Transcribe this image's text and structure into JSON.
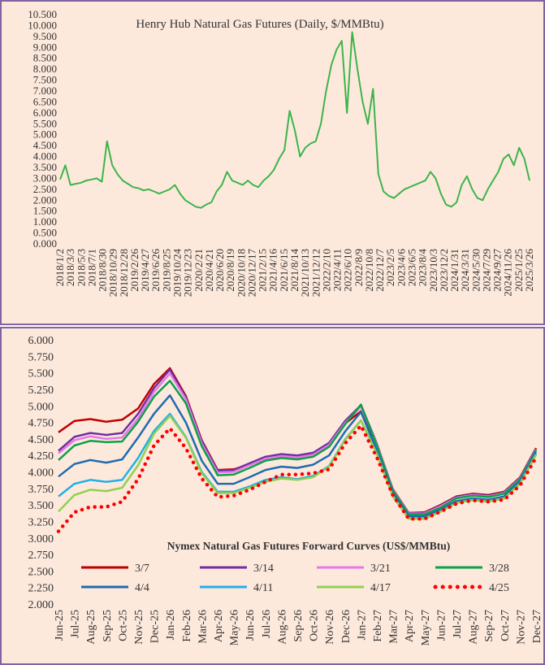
{
  "chart_data": [
    {
      "type": "line",
      "title": "Henry Hub Natural Gas Futures (Daily, $/MMBtu)",
      "xlabel": "",
      "ylabel": "",
      "ylim": [
        0,
        10.5
      ],
      "y_ticks": [
        "0.000",
        "0.500",
        "1.000",
        "1.500",
        "2.000",
        "2.500",
        "3.000",
        "3.500",
        "4.000",
        "4.500",
        "5.000",
        "5.500",
        "6.000",
        "6.500",
        "7.000",
        "7.500",
        "8.000",
        "8.500",
        "9.000",
        "9.500",
        "10.000",
        "10.500"
      ],
      "x_ticks": [
        "2018/1/2",
        "2018/3/3",
        "2018/5/3",
        "2018/7/1",
        "2018/8/30",
        "2018/10/29",
        "2018/12/28",
        "2019/2/26",
        "2019/4/27",
        "2019/6/26",
        "2019/8/25",
        "2019/10/24",
        "2019/12/23",
        "2020/2/21",
        "2020/4/21",
        "2020/6/20",
        "2020/8/19",
        "2020/10/18",
        "2020/12/17",
        "2021/2/15",
        "2021/4/16",
        "2021/6/15",
        "2021/8/14",
        "2021/10/13",
        "2021/12/12",
        "2022/2/10",
        "2022/4/11",
        "2022/6/10",
        "2022/8/9",
        "2022/10/8",
        "2022/12/7",
        "2023/2/5",
        "2023/4/6",
        "2023/6/5",
        "2023/8/4",
        "2023/10/3",
        "2023/12/2",
        "2024/1/31",
        "2024/3/31",
        "2024/5/30",
        "2024/7/29",
        "2024/9/27",
        "2024/11/26",
        "2025/1/25",
        "2025/3/26"
      ],
      "grid": false,
      "color": "#3cb44b",
      "series": [
        {
          "values": [
            2.95,
            3.6,
            2.7,
            2.75,
            2.8,
            2.9,
            2.95,
            3.0,
            2.85,
            4.7,
            3.6,
            3.2,
            2.9,
            2.75,
            2.6,
            2.55,
            2.45,
            2.5,
            2.4,
            2.3,
            2.4,
            2.5,
            2.7,
            2.3,
            2.0,
            1.85,
            1.7,
            1.65,
            1.8,
            1.9,
            2.4,
            2.7,
            3.3,
            2.9,
            2.8,
            2.7,
            2.9,
            2.7,
            2.6,
            2.9,
            3.1,
            3.4,
            3.9,
            4.3,
            6.1,
            5.2,
            4.0,
            4.4,
            4.6,
            4.7,
            5.5,
            7.0,
            8.2,
            8.9,
            9.3,
            6.0,
            9.7,
            8.0,
            6.5,
            5.5,
            7.1,
            3.2,
            2.4,
            2.2,
            2.1,
            2.3,
            2.5,
            2.6,
            2.7,
            2.8,
            2.9,
            3.3,
            3.0,
            2.3,
            1.8,
            1.7,
            1.9,
            2.7,
            3.1,
            2.5,
            2.1,
            2.0,
            2.5,
            2.9,
            3.3,
            3.9,
            4.1,
            3.6,
            4.4,
            3.9,
            2.9
          ]
        }
      ]
    },
    {
      "type": "line",
      "title": "Nymex Natural Gas Futures Forward  Curves (US$/MMBtu)",
      "xlabel": "",
      "ylabel": "",
      "ylim": [
        2.0,
        6.0
      ],
      "y_ticks": [
        "2.000",
        "2.250",
        "2.500",
        "2.750",
        "3.000",
        "3.250",
        "3.500",
        "3.750",
        "4.000",
        "4.250",
        "4.500",
        "4.750",
        "5.000",
        "5.250",
        "5.500",
        "5.750",
        "6.000"
      ],
      "categories": [
        "Jun-25",
        "Jul-25",
        "Aug-25",
        "Sep-25",
        "Oct-25",
        "Nov-25",
        "Dec-25",
        "Jan-26",
        "Feb-26",
        "Mar-26",
        "Apr-26",
        "May-26",
        "Jun-26",
        "Jul-26",
        "Aug-26",
        "Sep-26",
        "Oct-26",
        "Nov-26",
        "Dec-26",
        "Jan-27",
        "Feb-27",
        "Mar-27",
        "Apr-27",
        "May-27",
        "Jun-27",
        "Jul-27",
        "Aug-27",
        "Sep-27",
        "Oct-27",
        "Nov-27",
        "Dec-27"
      ],
      "legend": "inside-bottom",
      "grid": false,
      "series": [
        {
          "name": "3/7",
          "color": "#c00000",
          "dash": "solid",
          "values": [
            4.6,
            4.77,
            4.8,
            4.76,
            4.79,
            4.96,
            5.33,
            5.57,
            5.15,
            4.48,
            4.03,
            4.04,
            4.11,
            4.19,
            4.24,
            4.22,
            4.27,
            4.42,
            4.73,
            4.92,
            4.42,
            3.74,
            3.38,
            3.39,
            3.5,
            3.63,
            3.67,
            3.65,
            3.7,
            3.92,
            4.36
          ]
        },
        {
          "name": "3/14",
          "color": "#7030a0",
          "dash": "solid",
          "values": [
            4.32,
            4.53,
            4.59,
            4.56,
            4.59,
            4.88,
            5.27,
            5.55,
            5.13,
            4.47,
            4.02,
            4.03,
            4.13,
            4.23,
            4.27,
            4.25,
            4.29,
            4.44,
            4.77,
            5.01,
            4.43,
            3.73,
            3.38,
            3.38,
            3.49,
            3.62,
            3.66,
            3.64,
            3.69,
            3.91,
            4.35
          ]
        },
        {
          "name": "3/21",
          "color": "#e879e6",
          "dash": "solid",
          "values": [
            4.28,
            4.48,
            4.54,
            4.5,
            4.52,
            4.81,
            5.21,
            5.49,
            5.1,
            4.43,
            3.99,
            4.0,
            4.1,
            4.2,
            4.24,
            4.22,
            4.26,
            4.41,
            4.74,
            4.99,
            4.42,
            3.73,
            3.37,
            3.37,
            3.48,
            3.61,
            3.65,
            3.63,
            3.68,
            3.9,
            4.34
          ]
        },
        {
          "name": "3/28",
          "color": "#0ca14a",
          "dash": "solid",
          "values": [
            4.18,
            4.4,
            4.47,
            4.45,
            4.46,
            4.76,
            5.14,
            5.38,
            5.04,
            4.39,
            3.95,
            3.96,
            4.06,
            4.17,
            4.21,
            4.19,
            4.23,
            4.38,
            4.72,
            5.02,
            4.4,
            3.72,
            3.36,
            3.36,
            3.46,
            3.6,
            3.64,
            3.62,
            3.67,
            3.89,
            4.33
          ]
        },
        {
          "name": "4/4",
          "color": "#1f6bb0",
          "dash": "solid",
          "values": [
            3.93,
            4.12,
            4.18,
            4.14,
            4.19,
            4.52,
            4.88,
            5.16,
            4.75,
            4.17,
            3.82,
            3.82,
            3.92,
            4.03,
            4.08,
            4.06,
            4.11,
            4.25,
            4.61,
            4.91,
            4.32,
            3.68,
            3.33,
            3.33,
            3.43,
            3.56,
            3.6,
            3.58,
            3.63,
            3.86,
            4.3
          ]
        },
        {
          "name": "4/11",
          "color": "#22b0e6",
          "dash": "solid",
          "values": [
            3.63,
            3.82,
            3.88,
            3.85,
            3.88,
            4.21,
            4.62,
            4.88,
            4.53,
            4.0,
            3.7,
            3.7,
            3.78,
            3.88,
            3.92,
            3.89,
            3.94,
            4.09,
            4.49,
            4.78,
            4.28,
            3.64,
            3.3,
            3.3,
            3.4,
            3.53,
            3.58,
            3.56,
            3.6,
            3.83,
            4.27
          ]
        },
        {
          "name": "4/17",
          "color": "#92d050",
          "dash": "solid",
          "values": [
            3.4,
            3.65,
            3.73,
            3.71,
            3.76,
            4.1,
            4.58,
            4.85,
            4.52,
            3.98,
            3.68,
            3.68,
            3.76,
            3.85,
            3.9,
            3.88,
            3.92,
            4.08,
            4.48,
            4.78,
            4.27,
            3.63,
            3.29,
            3.29,
            3.4,
            3.53,
            3.57,
            3.55,
            3.6,
            3.82,
            4.26
          ]
        },
        {
          "name": "4/25",
          "color": "#ff0000",
          "dash": "dotted",
          "values": [
            3.1,
            3.39,
            3.47,
            3.47,
            3.55,
            3.89,
            4.4,
            4.66,
            4.36,
            3.9,
            3.62,
            3.64,
            3.73,
            3.85,
            3.96,
            3.96,
            3.98,
            4.04,
            4.43,
            4.7,
            4.22,
            3.65,
            3.29,
            3.29,
            3.4,
            3.52,
            3.57,
            3.55,
            3.58,
            3.8,
            4.22
          ]
        }
      ]
    }
  ]
}
